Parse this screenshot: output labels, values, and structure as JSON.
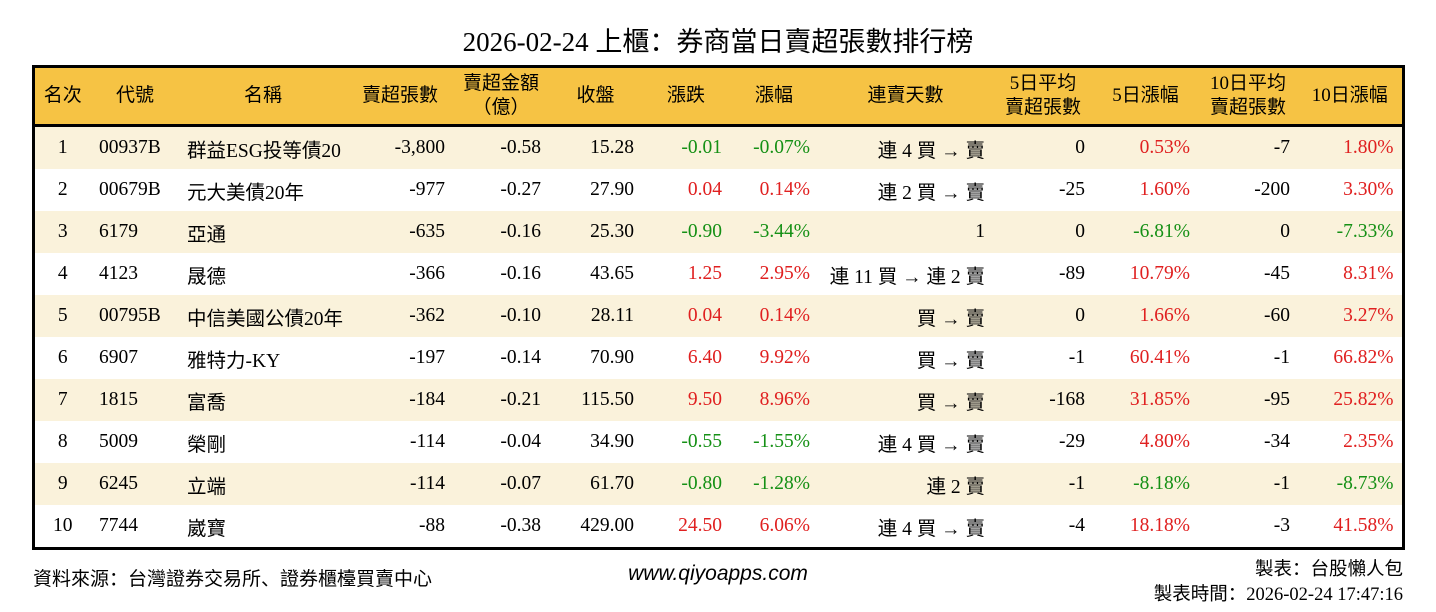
{
  "title": "2026-02-24 上櫃：券商當日賣超張數排行榜",
  "colors": {
    "header_bg": "#f6c344",
    "stripe": "#faf2db",
    "up": "#e02020",
    "down": "#159015",
    "border": "#000000"
  },
  "table": {
    "columns": [
      {
        "key": "rank",
        "label": [
          "名次"
        ],
        "align": "center",
        "colored": false
      },
      {
        "key": "code",
        "label": [
          "代號"
        ],
        "align": "left",
        "colored": false
      },
      {
        "key": "name",
        "label": [
          "名稱"
        ],
        "align": "left",
        "colored": false
      },
      {
        "key": "sell_volume",
        "label": [
          "賣超張數"
        ],
        "align": "right",
        "colored": false
      },
      {
        "key": "sell_amount",
        "label": [
          "賣超金額",
          "（億）"
        ],
        "align": "right",
        "colored": false
      },
      {
        "key": "close",
        "label": [
          "收盤"
        ],
        "align": "right",
        "colored": false
      },
      {
        "key": "change",
        "label": [
          "漲跌"
        ],
        "align": "right",
        "colored": true
      },
      {
        "key": "change_pct",
        "label": [
          "漲幅"
        ],
        "align": "right",
        "colored": true
      },
      {
        "key": "streak",
        "label": [
          "連賣天數"
        ],
        "align": "right",
        "colored": false
      },
      {
        "key": "avg5",
        "label": [
          "5日平均",
          "賣超張數"
        ],
        "align": "right",
        "colored": false
      },
      {
        "key": "pct5",
        "label": [
          "5日漲幅"
        ],
        "align": "right",
        "colored": true
      },
      {
        "key": "avg10",
        "label": [
          "10日平均",
          "賣超張數"
        ],
        "align": "right",
        "colored": false
      },
      {
        "key": "pct10",
        "label": [
          "10日漲幅"
        ],
        "align": "right",
        "colored": true
      }
    ],
    "rows": [
      {
        "rank": "1",
        "code": "00937B",
        "name": "群益ESG投等債20",
        "sell_volume": "-3,800",
        "sell_amount": "-0.58",
        "close": "15.28",
        "change": "-0.01",
        "change_pct": "-0.07%",
        "streak": "連 4 買 → 賣",
        "avg5": "0",
        "pct5": "0.53%",
        "avg10": "-7",
        "pct10": "1.80%"
      },
      {
        "rank": "2",
        "code": "00679B",
        "name": "元大美債20年",
        "sell_volume": "-977",
        "sell_amount": "-0.27",
        "close": "27.90",
        "change": "0.04",
        "change_pct": "0.14%",
        "streak": "連 2 買 → 賣",
        "avg5": "-25",
        "pct5": "1.60%",
        "avg10": "-200",
        "pct10": "3.30%"
      },
      {
        "rank": "3",
        "code": "6179",
        "name": "亞通",
        "sell_volume": "-635",
        "sell_amount": "-0.16",
        "close": "25.30",
        "change": "-0.90",
        "change_pct": "-3.44%",
        "streak": "1",
        "avg5": "0",
        "pct5": "-6.81%",
        "avg10": "0",
        "pct10": "-7.33%"
      },
      {
        "rank": "4",
        "code": "4123",
        "name": "晟德",
        "sell_volume": "-366",
        "sell_amount": "-0.16",
        "close": "43.65",
        "change": "1.25",
        "change_pct": "2.95%",
        "streak": "連 11 買 → 連 2 賣",
        "avg5": "-89",
        "pct5": "10.79%",
        "avg10": "-45",
        "pct10": "8.31%"
      },
      {
        "rank": "5",
        "code": "00795B",
        "name": "中信美國公債20年",
        "sell_volume": "-362",
        "sell_amount": "-0.10",
        "close": "28.11",
        "change": "0.04",
        "change_pct": "0.14%",
        "streak": "買 → 賣",
        "avg5": "0",
        "pct5": "1.66%",
        "avg10": "-60",
        "pct10": "3.27%"
      },
      {
        "rank": "6",
        "code": "6907",
        "name": "雅特力-KY",
        "sell_volume": "-197",
        "sell_amount": "-0.14",
        "close": "70.90",
        "change": "6.40",
        "change_pct": "9.92%",
        "streak": "買 → 賣",
        "avg5": "-1",
        "pct5": "60.41%",
        "avg10": "-1",
        "pct10": "66.82%"
      },
      {
        "rank": "7",
        "code": "1815",
        "name": "富喬",
        "sell_volume": "-184",
        "sell_amount": "-0.21",
        "close": "115.50",
        "change": "9.50",
        "change_pct": "8.96%",
        "streak": "買 → 賣",
        "avg5": "-168",
        "pct5": "31.85%",
        "avg10": "-95",
        "pct10": "25.82%"
      },
      {
        "rank": "8",
        "code": "5009",
        "name": "榮剛",
        "sell_volume": "-114",
        "sell_amount": "-0.04",
        "close": "34.90",
        "change": "-0.55",
        "change_pct": "-1.55%",
        "streak": "連 4 買 → 賣",
        "avg5": "-29",
        "pct5": "4.80%",
        "avg10": "-34",
        "pct10": "2.35%"
      },
      {
        "rank": "9",
        "code": "6245",
        "name": "立端",
        "sell_volume": "-114",
        "sell_amount": "-0.07",
        "close": "61.70",
        "change": "-0.80",
        "change_pct": "-1.28%",
        "streak": "連 2 賣",
        "avg5": "-1",
        "pct5": "-8.18%",
        "avg10": "-1",
        "pct10": "-8.73%"
      },
      {
        "rank": "10",
        "code": "7744",
        "name": "崴寶",
        "sell_volume": "-88",
        "sell_amount": "-0.38",
        "close": "429.00",
        "change": "24.50",
        "change_pct": "6.06%",
        "streak": "連 4 買 → 賣",
        "avg5": "-4",
        "pct5": "18.18%",
        "avg10": "-3",
        "pct10": "41.58%"
      }
    ]
  },
  "footer": {
    "source": "資料來源：台灣證券交易所、證券櫃檯買賣中心",
    "site": "www.qiyoapps.com",
    "maker": "製表：台股懶人包",
    "time": "製表時間：2026-02-24 17:47:16"
  }
}
